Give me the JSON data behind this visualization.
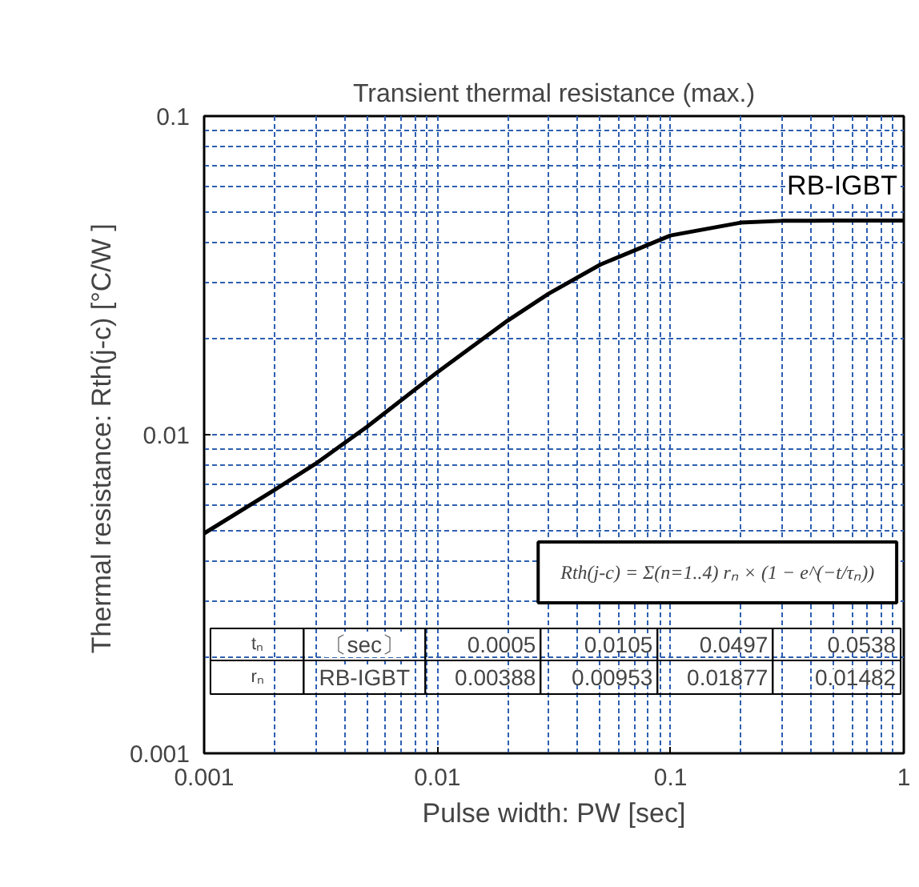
{
  "chart_data": {
    "type": "line",
    "title": "Transient thermal resistance (max.)",
    "xlabel": "Pulse width: PW [sec]",
    "ylabel": "Thermal resistance: Rth(j-c)  [°C/W ]",
    "log": "xy",
    "xlim": [
      0.001,
      1
    ],
    "ylim": [
      0.001,
      0.1
    ],
    "xticks": [
      0.001,
      0.01,
      0.1,
      1
    ],
    "yticks": [
      0.001,
      0.01,
      0.1
    ],
    "grid": true,
    "marker": "none",
    "line_style": "solid",
    "x": [
      0.001,
      0.002,
      0.003,
      0.005,
      0.01,
      0.02,
      0.03,
      0.05,
      0.1,
      0.2,
      0.3,
      0.5,
      1
    ],
    "series": [
      {
        "name": "RB-IGBT",
        "color": "#000000",
        "values": [
          0.0049,
          0.0067,
          0.0081,
          0.0106,
          0.0157,
          0.0228,
          0.0277,
          0.0342,
          0.0422,
          0.0463,
          0.0469,
          0.047,
          0.047
        ]
      }
    ],
    "annotations": [
      "Rth(j-c) = Σ(n=1..4) rₙ × (1 − e^(−t/τₙ))",
      "tₙ",
      "〔sec〕",
      "0.0005",
      "0.0105",
      "0.0497",
      "0.0538",
      "rₙ",
      "RB-IGBT",
      "0.00388",
      "0.00953",
      "0.01877",
      "0.01482"
    ]
  }
}
